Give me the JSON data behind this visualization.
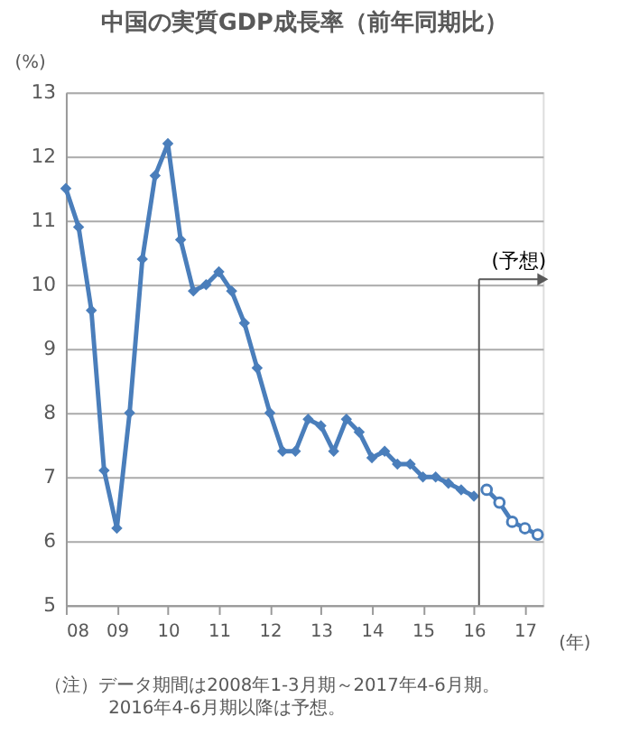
{
  "chart_data": {
    "type": "line",
    "title": "中国の実質GDP成長率（前年同期比）",
    "ylabel": "(%)",
    "xlabel": "(年)",
    "series": [
      {
        "color": "#4a7ebb",
        "marker": "diamond",
        "x": [
          2008,
          2008.25,
          2008.5,
          2008.75,
          2009,
          2009.25,
          2009.5,
          2009.75,
          2010,
          2010.25,
          2010.5,
          2010.75,
          2011,
          2011.25,
          2011.5,
          2011.75,
          2012,
          2012.25,
          2012.5,
          2012.75,
          2013,
          2013.25,
          2013.5,
          2013.75,
          2014,
          2014.25,
          2014.5,
          2014.75,
          2015,
          2015.25,
          2015.5,
          2015.75,
          2016
        ],
        "values": [
          11.5,
          10.9,
          9.6,
          7.1,
          6.2,
          8.0,
          10.4,
          11.7,
          12.2,
          10.7,
          9.9,
          10.0,
          10.2,
          9.9,
          9.4,
          8.7,
          8.0,
          7.4,
          7.4,
          7.9,
          7.8,
          7.4,
          7.9,
          7.7,
          7.3,
          7.4,
          7.2,
          7.2,
          7.0,
          7.0,
          6.9,
          6.8,
          6.7
        ]
      },
      {
        "color": "#4a7ebb",
        "marker": "circle",
        "x": [
          2016.25,
          2016.5,
          2016.75,
          2017,
          2017.25
        ],
        "values": [
          6.8,
          6.6,
          6.3,
          6.2,
          6.1
        ]
      }
    ],
    "xlim": [
      2008,
      2017.35
    ],
    "xticks": [
      {
        "value": 2008,
        "label": "08"
      },
      {
        "value": 2009,
        "label": "09"
      },
      {
        "value": 2010,
        "label": "10"
      },
      {
        "value": 2011,
        "label": "11"
      },
      {
        "value": 2012,
        "label": "12"
      },
      {
        "value": 2013,
        "label": "13"
      },
      {
        "value": 2014,
        "label": "14"
      },
      {
        "value": 2015,
        "label": "15"
      },
      {
        "value": 2016,
        "label": "16"
      },
      {
        "value": 2017,
        "label": "17"
      }
    ],
    "ylim": [
      5,
      13
    ],
    "yticks": [
      5,
      6,
      7,
      8,
      9,
      10,
      11,
      12,
      13
    ],
    "grid": "y",
    "ref_lines": [
      {
        "axis": "x",
        "value": 2016.1,
        "label": "(予想)",
        "color": "#595959"
      }
    ],
    "annotations": [
      "（注）データ期間は2008年1-3月期～2017年4-6月期。",
      "2016年4-6月期以降は予想。"
    ]
  }
}
